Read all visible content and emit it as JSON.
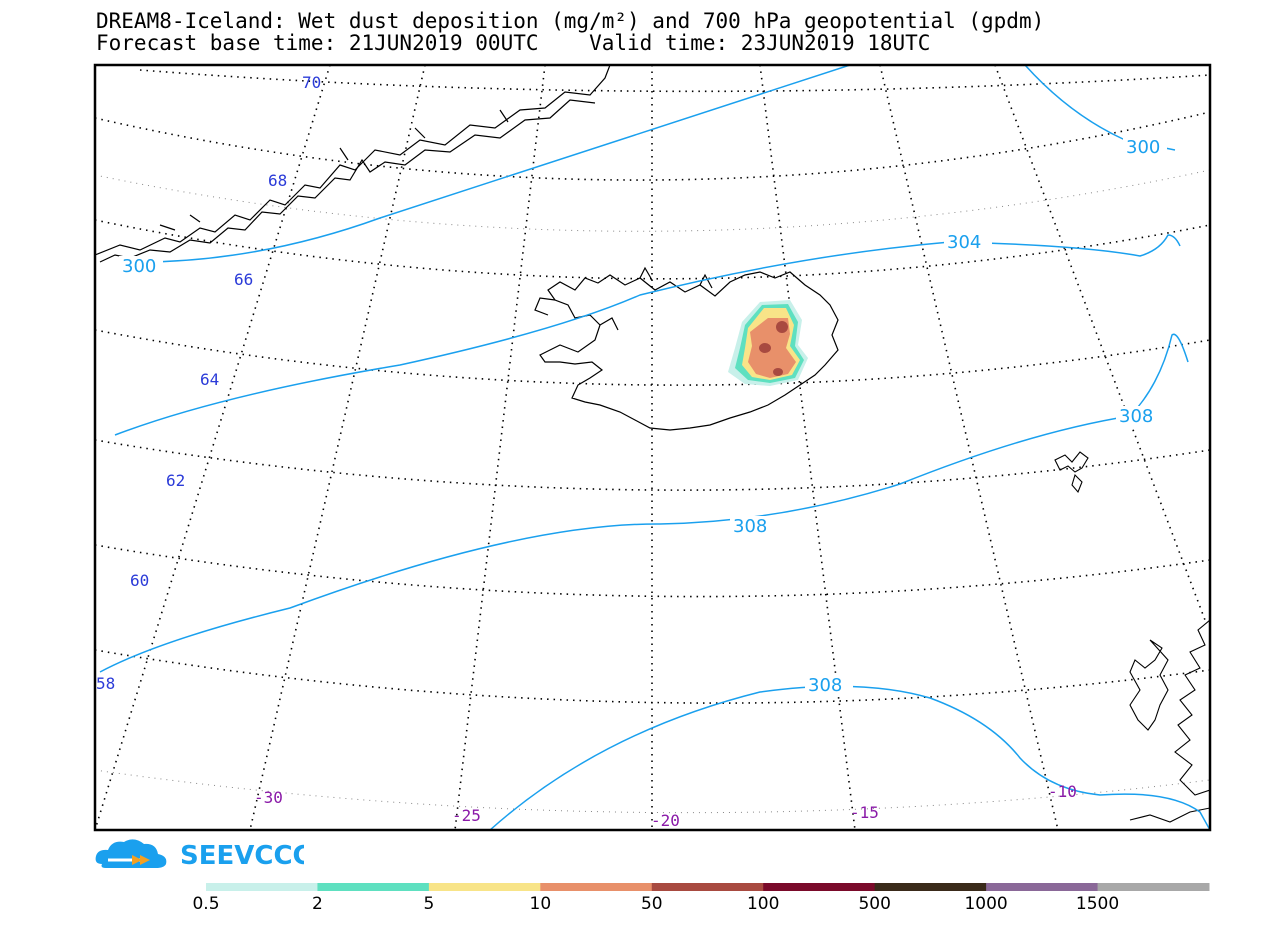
{
  "header": {
    "title_line1": "DREAM8-Iceland: Wet dust deposition (mg/m²) and 700 hPa geopotential (gpdm)",
    "title_line2": "Forecast base time: 21JUN2019 00UTC    Valid time: 23JUN2019 18UTC"
  },
  "map": {
    "projection": "polar stereographic",
    "lat_labels": [
      "70",
      "68",
      "66",
      "64",
      "62",
      "60",
      "58"
    ],
    "lon_labels": [
      "-30",
      "-25",
      "-20",
      "-15",
      "-10"
    ],
    "contour_labels": [
      "300",
      "300",
      "304",
      "308",
      "308",
      "308"
    ],
    "contour_color": "#1aa0ee",
    "graticule_color": "#000000"
  },
  "legend": {
    "logo_text": "SEEVCCC",
    "logo_color": "#1aa0ee",
    "thresholds": [
      "0.5",
      "2",
      "5",
      "10",
      "50",
      "100",
      "500",
      "1000",
      "1500"
    ],
    "colors": [
      "#c8f0ea",
      "#5ee0c0",
      "#f8e488",
      "#e8906a",
      "#a84a40",
      "#7a0a2a",
      "#3a2a1a",
      "#8a6898",
      "#a8a8a8"
    ]
  }
}
